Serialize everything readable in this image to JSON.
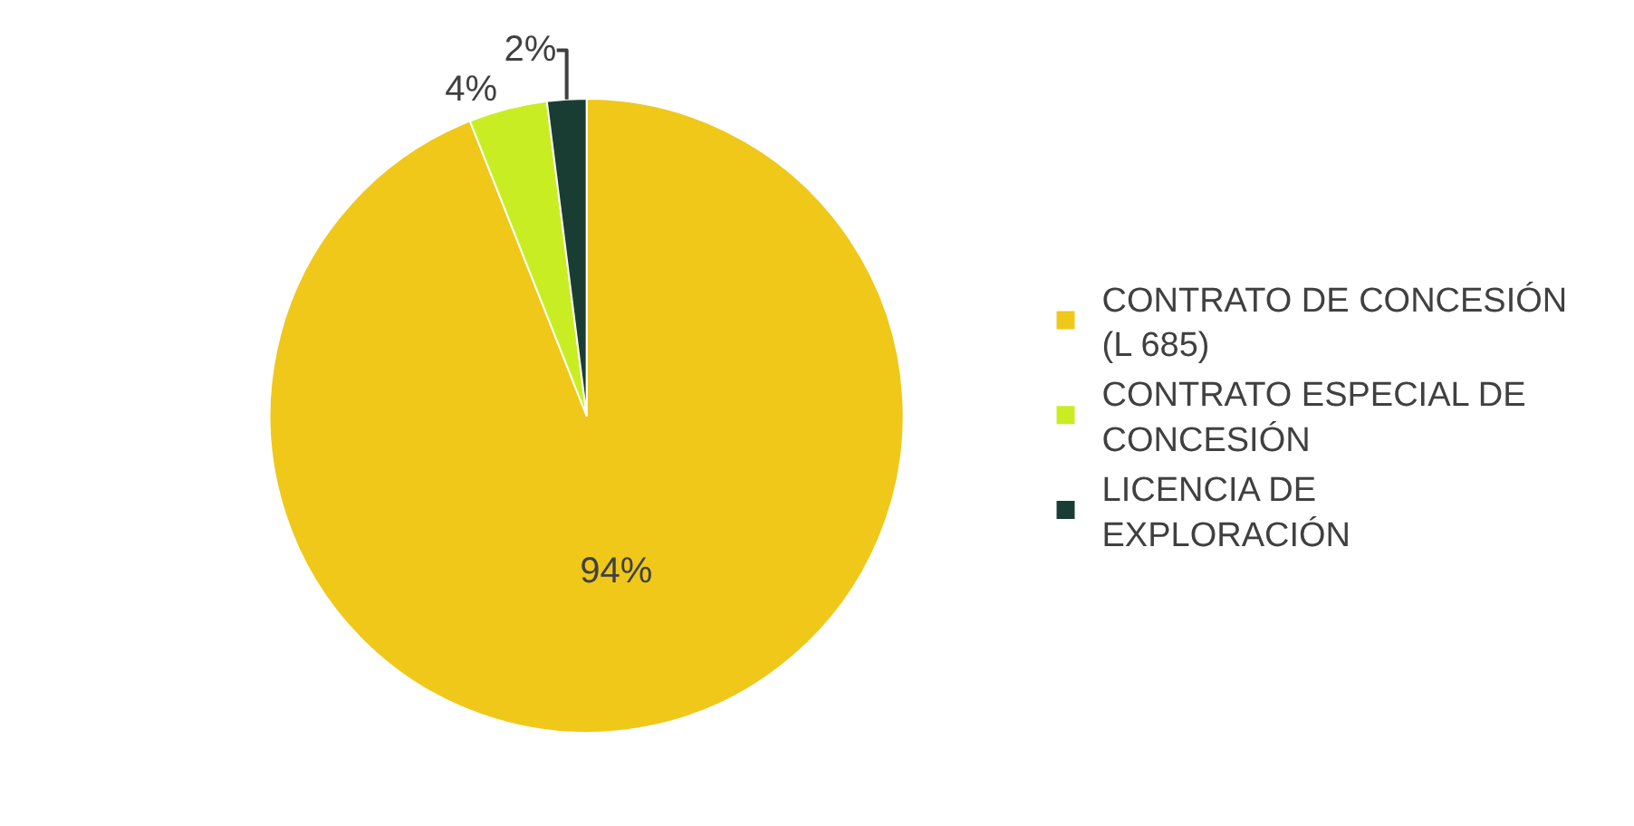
{
  "chart_data": {
    "type": "pie",
    "categories": [
      "CONTRATO DE CONCESIÓN (L 685)",
      "CONTRATO ESPECIAL DE CONCESIÓN",
      "LICENCIA DE EXPLORACIÓN"
    ],
    "values": [
      94,
      4,
      2
    ],
    "colors": [
      "#efc81a",
      "#c8ee23",
      "#1a3d33"
    ],
    "value_labels": [
      "94%",
      "4%",
      "2%"
    ],
    "legend": "right"
  }
}
